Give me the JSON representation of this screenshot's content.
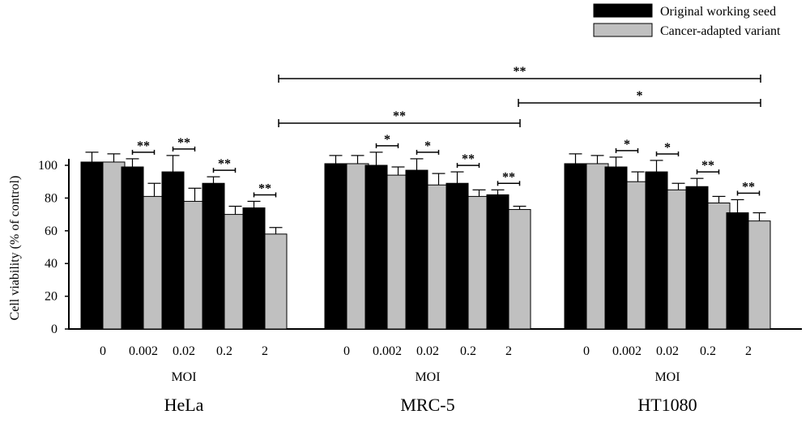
{
  "chart_data": {
    "type": "bar",
    "ylabel": "Cell viability (% of control)",
    "ylim": [
      0,
      100
    ],
    "yticks": [
      0,
      20,
      40,
      60,
      80,
      100
    ],
    "legend": {
      "placement": "top-right",
      "entries": [
        {
          "name": "Original working seed",
          "color": "#000000"
        },
        {
          "name": "Cancer-adapted variant",
          "color": "#c0c0c0"
        }
      ]
    },
    "panels": [
      {
        "cell_line": "HeLa",
        "xlabel": "MOI",
        "categories": [
          "0",
          "0.002",
          "0.02",
          "0.2",
          "2"
        ],
        "series": [
          {
            "name": "Original working seed",
            "values": [
              102,
              99,
              96,
              89,
              74
            ],
            "errors": [
              6,
              5,
              10,
              4,
              4
            ]
          },
          {
            "name": "Cancer-adapted variant",
            "values": [
              102,
              81,
              78,
              70,
              58
            ],
            "errors": [
              5,
              8,
              8,
              5,
              4
            ]
          }
        ],
        "significance": [
          "**",
          "**",
          "**",
          "**"
        ]
      },
      {
        "cell_line": "MRC-5",
        "xlabel": "MOI",
        "categories": [
          "0",
          "0.002",
          "0.02",
          "0.2",
          "2"
        ],
        "series": [
          {
            "name": "Original working seed",
            "values": [
              101,
              100,
              97,
              89,
              82
            ],
            "errors": [
              5,
              8,
              7,
              7,
              3
            ]
          },
          {
            "name": "Cancer-adapted variant",
            "values": [
              101,
              94,
              88,
              81,
              73
            ],
            "errors": [
              5,
              5,
              7,
              4,
              2
            ]
          }
        ],
        "significance": [
          "*",
          "*",
          "**",
          "**"
        ]
      },
      {
        "cell_line": "HT1080",
        "xlabel": "MOI",
        "categories": [
          "0",
          "0.002",
          "0.02",
          "0.2",
          "2"
        ],
        "series": [
          {
            "name": "Original working seed",
            "values": [
              101,
              99,
              96,
              87,
              71
            ],
            "errors": [
              6,
              6,
              7,
              5,
              8
            ]
          },
          {
            "name": "Cancer-adapted variant",
            "values": [
              101,
              90,
              85,
              77,
              66
            ],
            "errors": [
              5,
              6,
              4,
              4,
              5
            ]
          }
        ],
        "significance": [
          "*",
          "*",
          "**",
          "**"
        ]
      }
    ],
    "comparisons": [
      {
        "from": "HeLa",
        "to": "HT1080",
        "label": "**"
      },
      {
        "from": "MRC-5",
        "to": "HT1080",
        "label": "*"
      },
      {
        "from": "HeLa",
        "to": "MRC-5",
        "label": "**"
      }
    ]
  }
}
